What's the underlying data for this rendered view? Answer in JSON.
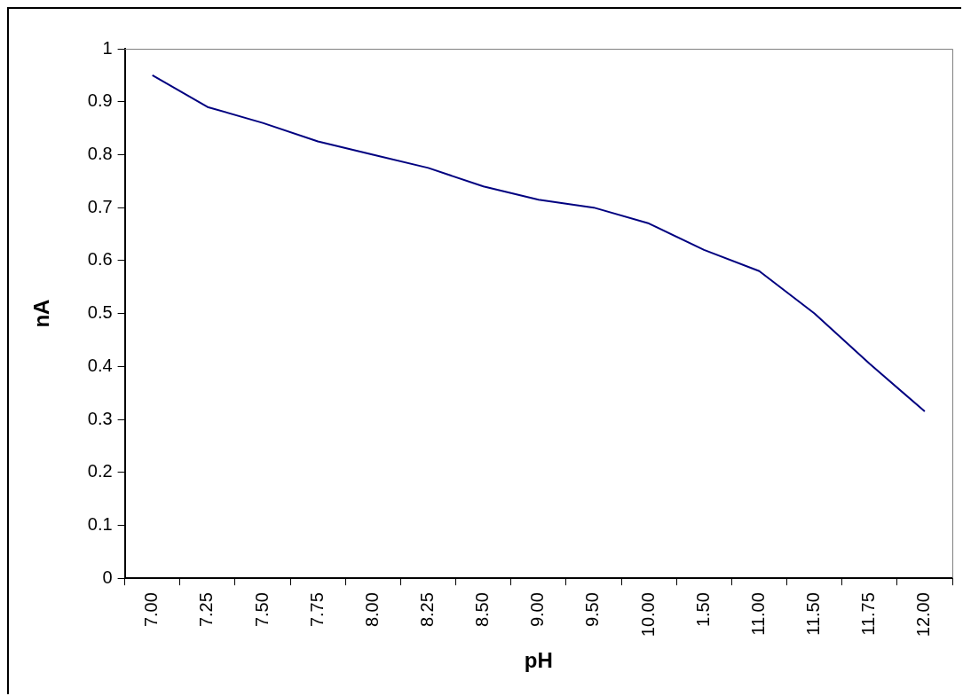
{
  "chart_data": {
    "type": "line",
    "xlabel": "pH",
    "ylabel": "nA",
    "categories": [
      "7.00",
      "7.25",
      "7.50",
      "7.75",
      "8.00",
      "8.25",
      "8.50",
      "9.00",
      "9.50",
      "10.00",
      "1.50",
      "11.00",
      "11.50",
      "11.75",
      "12.00"
    ],
    "series": [
      {
        "color": "#000080",
        "values": [
          0.95,
          0.89,
          0.86,
          0.825,
          0.8,
          0.775,
          0.74,
          0.715,
          0.7,
          0.67,
          0.62,
          0.58,
          0.5,
          0.405,
          0.315
        ]
      }
    ],
    "ylim": [
      0,
      1
    ],
    "yticks": [
      0,
      0.1,
      0.2,
      0.3,
      0.4,
      0.5,
      0.6,
      0.7,
      0.8,
      0.9,
      1
    ],
    "grid": false,
    "legend": false,
    "marker": "none",
    "line_style": "solid"
  }
}
